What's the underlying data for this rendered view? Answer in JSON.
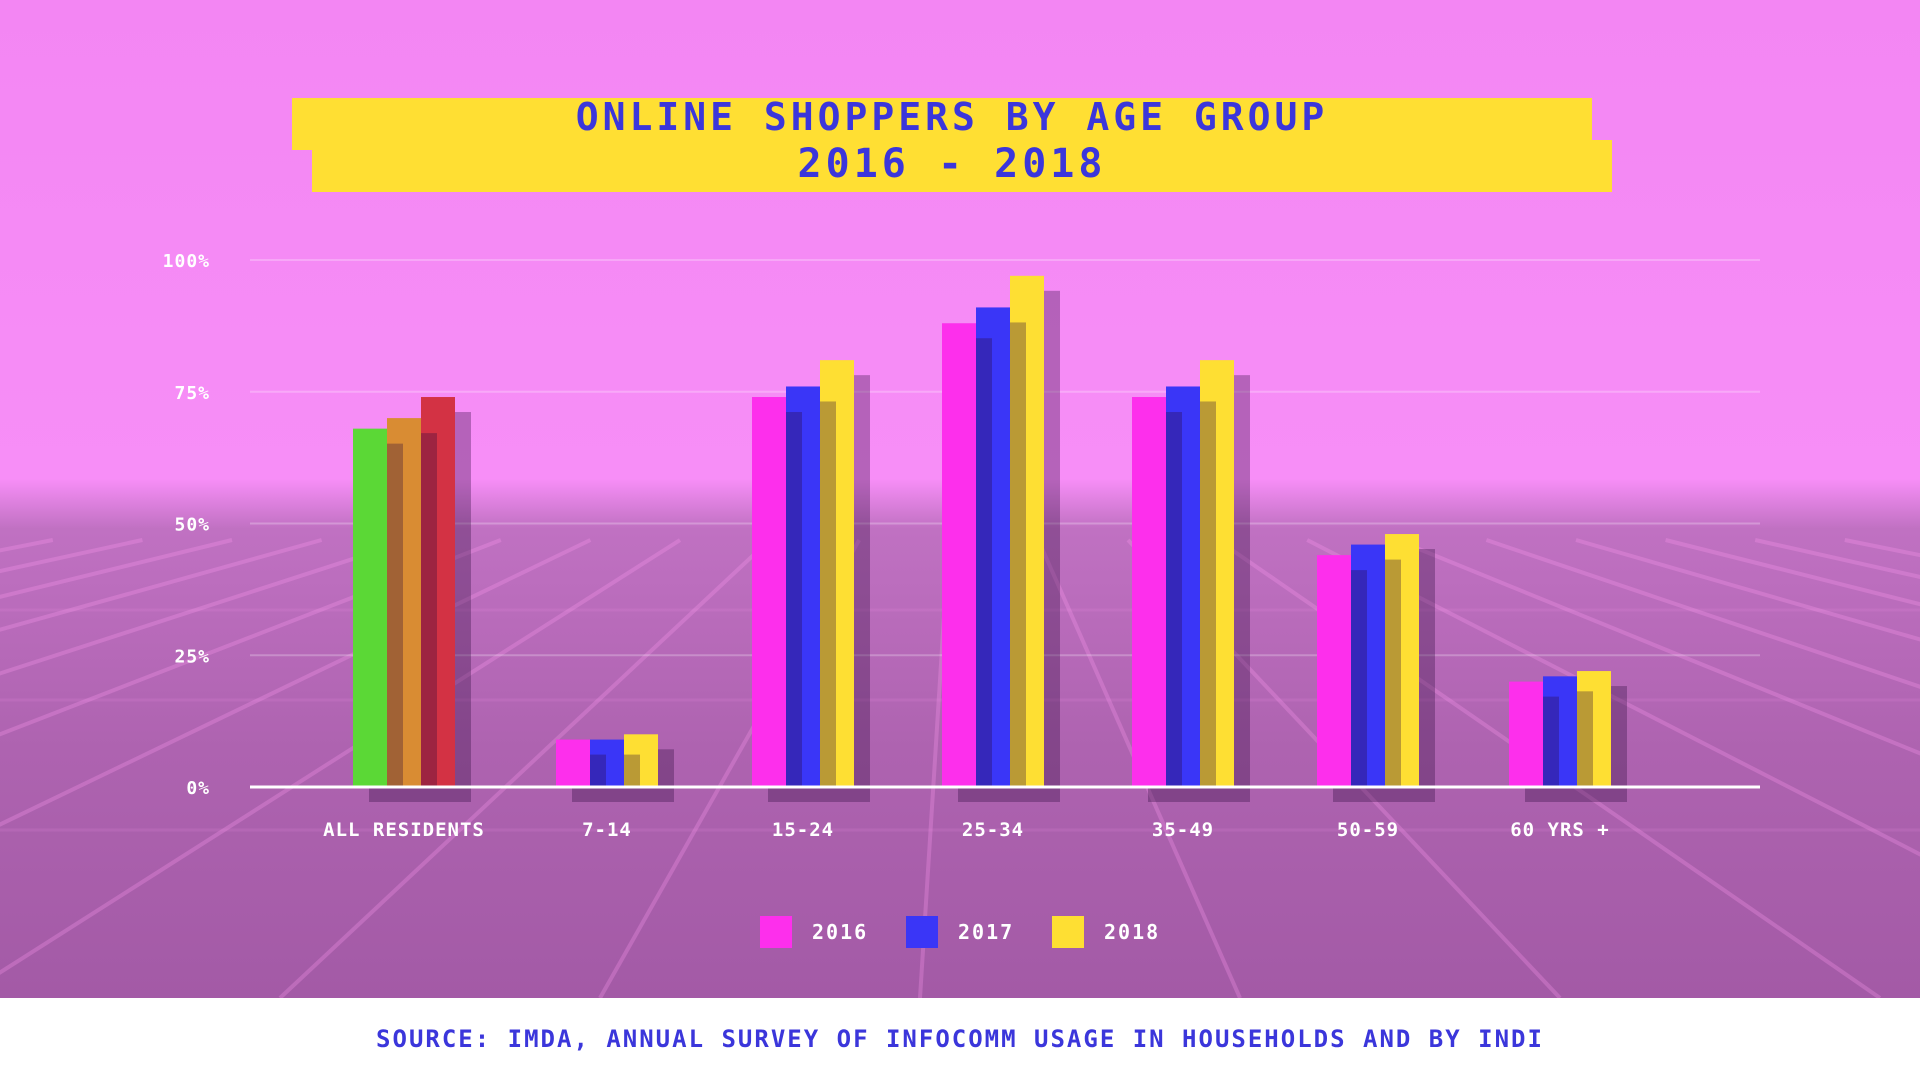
{
  "chart_data": {
    "type": "bar",
    "title": "ONLINE SHOPPERS BY AGE GROUP",
    "subtitle": "2016 - 2018",
    "categories": [
      "ALL RESIDENTS",
      "7-14",
      "15-24",
      "25-34",
      "35-49",
      "50-59",
      "60 YRS +"
    ],
    "series": [
      {
        "name": "2016",
        "color": "#fd2fec",
        "values": [
          68,
          9,
          74,
          88,
          74,
          44,
          20
        ]
      },
      {
        "name": "2017",
        "color": "#3a36f7",
        "values": [
          70,
          9,
          76,
          91,
          76,
          46,
          21
        ]
      },
      {
        "name": "2018",
        "color": "#fedf33",
        "values": [
          74,
          10,
          81,
          97,
          81,
          48,
          22
        ]
      }
    ],
    "category_colors": {
      "ALL RESIDENTS": [
        "#5bd836",
        "#d98c33",
        "#d33244"
      ]
    },
    "yticks": [
      {
        "value": 100,
        "label": "100%"
      },
      {
        "value": 75,
        "label": "75%"
      },
      {
        "value": 50,
        "label": "50%"
      },
      {
        "value": 25,
        "label": "25%"
      },
      {
        "value": 0,
        "label": "0%"
      }
    ],
    "ylim": [
      0,
      100
    ],
    "grid": true,
    "legend_position": "bottom-center"
  },
  "source": "SOURCE: IMDA, ANNUAL SURVEY OF INFOCOMM USAGE IN HOUSEHOLDS AND BY INDI"
}
